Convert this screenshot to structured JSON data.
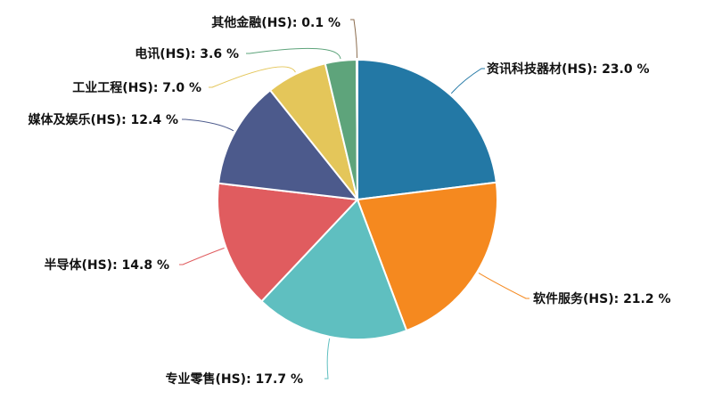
{
  "chart_data": {
    "type": "pie",
    "title": "",
    "legend": "none",
    "slices": [
      {
        "label": "资讯科技器材(HS): 23.0 %",
        "name": "资讯科技器材(HS)",
        "value": 23.0,
        "color": "#2378a5"
      },
      {
        "label": "软件服务(HS): 21.2 %",
        "name": "软件服务(HS)",
        "value": 21.2,
        "color": "#f5891f"
      },
      {
        "label": "专业零售(HS): 17.7 %",
        "name": "专业零售(HS)",
        "value": 17.7,
        "color": "#5fbfc0"
      },
      {
        "label": "半导体(HS): 14.8 %",
        "name": "半导体(HS)",
        "value": 14.8,
        "color": "#e05c5f"
      },
      {
        "label": "媒体及娱乐(HS): 12.4 %",
        "name": "媒体及娱乐(HS)",
        "value": 12.4,
        "color": "#4c5a8c"
      },
      {
        "label": "工业工程(HS): 7.0 %",
        "name": "工业工程(HS)",
        "value": 7.0,
        "color": "#e4c65a"
      },
      {
        "label": "电讯(HS): 3.6 %",
        "name": "电讯(HS)",
        "value": 3.6,
        "color": "#5ea47b"
      },
      {
        "label": "其他金融(HS): 0.1 %",
        "name": "其他金融(HS)",
        "value": 0.1,
        "color": "#8c6d4f"
      }
    ]
  }
}
